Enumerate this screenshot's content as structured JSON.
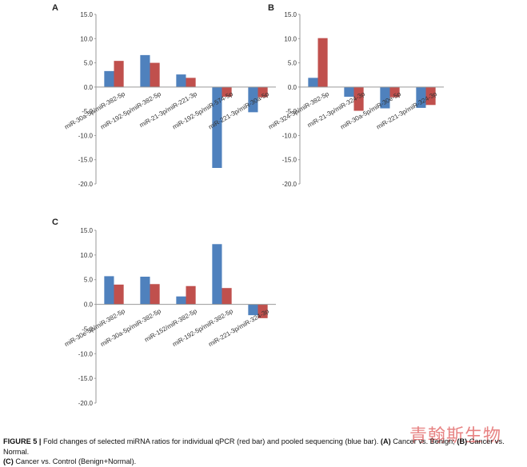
{
  "colors": {
    "blue": "#4f81bd",
    "red": "#c0504d",
    "axis": "#9a9a9a",
    "tick_text": "#333333"
  },
  "chart_data": [
    {
      "panel": "A",
      "type": "bar",
      "ylim": [
        -20,
        15
      ],
      "yticks": [
        "15.0",
        "10.0",
        "5.0",
        "0.0",
        "-5.0",
        "-10.0",
        "-15.0",
        "-20.0"
      ],
      "ytick_values": [
        15,
        10,
        5,
        0,
        -5,
        -10,
        -15,
        -20
      ],
      "categories": [
        "miR-30a-5p/miR-382-5p",
        "miR-192-5p/miR-382-5p",
        "miR-21-3p/miR-221-3p",
        "miR-192-5p/miR-574-5p",
        "miR-221-3p/miR-30a-5p"
      ],
      "series": [
        {
          "name": "pooled sequencing",
          "color": "#4f81bd",
          "values": [
            3.3,
            6.6,
            2.6,
            -16.7,
            -5.2
          ]
        },
        {
          "name": "individual qPCR",
          "color": "#c0504d",
          "values": [
            5.4,
            5.0,
            1.9,
            -2.0,
            -2.1
          ]
        }
      ]
    },
    {
      "panel": "B",
      "type": "bar",
      "ylim": [
        -20,
        15
      ],
      "yticks": [
        "15.0",
        "10.0",
        "5.0",
        "0.0",
        "-5.0",
        "-10.0",
        "-15.0",
        "-20.0"
      ],
      "ytick_values": [
        15,
        10,
        5,
        0,
        -5,
        -10,
        -15,
        -20
      ],
      "categories": [
        "miR-324-3p/miR-382-5p",
        "miR-21-3p/miR-324-3p",
        "miR-30a-5p/miR-30e-5p",
        "miR-221-3p/miR-324-3p"
      ],
      "series": [
        {
          "name": "pooled sequencing",
          "color": "#4f81bd",
          "values": [
            1.9,
            -2.0,
            -4.4,
            -4.3
          ]
        },
        {
          "name": "individual qPCR",
          "color": "#c0504d",
          "values": [
            10.1,
            -4.9,
            -2.1,
            -3.7
          ]
        }
      ]
    },
    {
      "panel": "C",
      "type": "bar",
      "ylim": [
        -20,
        15
      ],
      "yticks": [
        "15.0",
        "10.0",
        "5.0",
        "0.0",
        "-5.0",
        "-10.0",
        "-15.0",
        "-20.0"
      ],
      "ytick_values": [
        15,
        10,
        5,
        0,
        -5,
        -10,
        -15,
        -20
      ],
      "categories": [
        "miR-30e-5p/miR-382-5p",
        "miR-30a-5p/miR-382-5p",
        "miR-152/miR-382-5p",
        "miR-192-5p/miR-382-5p",
        "miR-221-3p/miR-324-3p"
      ],
      "series": [
        {
          "name": "pooled sequencing",
          "color": "#4f81bd",
          "values": [
            5.7,
            5.6,
            1.6,
            12.2,
            -2.2
          ]
        },
        {
          "name": "individual qPCR",
          "color": "#c0504d",
          "values": [
            4.0,
            4.1,
            3.7,
            3.3,
            -2.8
          ]
        }
      ]
    }
  ],
  "caption": {
    "label": "FIGURE 5 |",
    "text_1": " Fold changes of selected miRNA ratios for individual qPCR (red bar) and pooled sequencing (blue bar). ",
    "a_label": "(A)",
    "a_text": " Cancer vs. Benign; ",
    "b_label": "(B)",
    "b_text": " Cancer vs. Normal. ",
    "c_label": "(C)",
    "c_text": " Cancer vs. Control (Benign+Normal)."
  },
  "watermark": "青翰斯生物"
}
